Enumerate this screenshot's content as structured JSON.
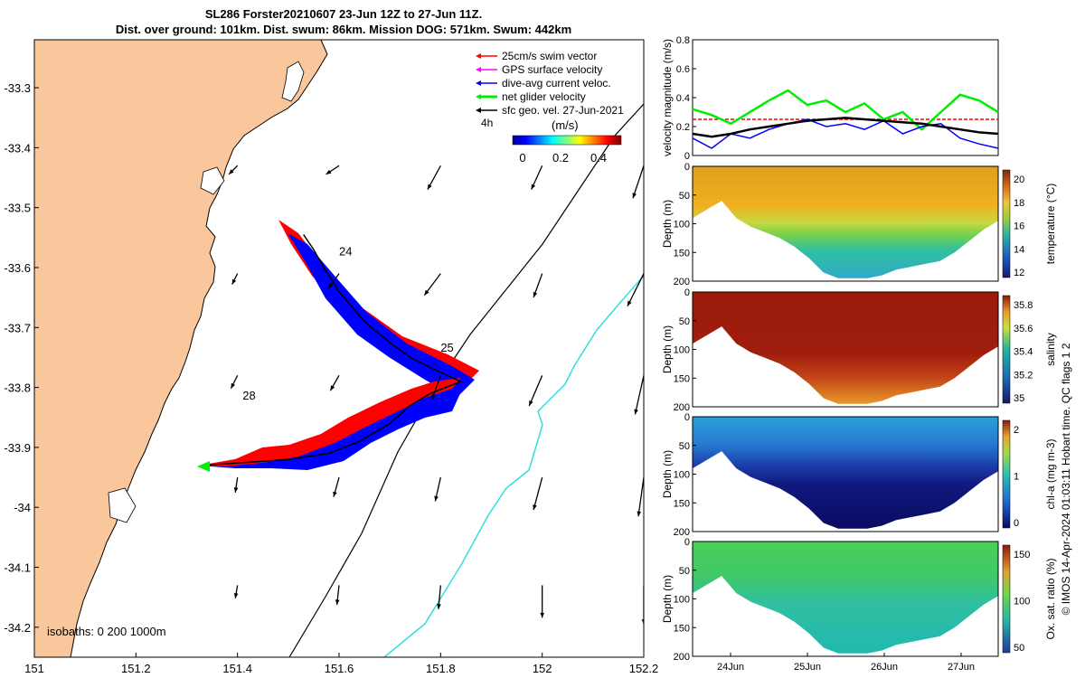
{
  "header": {
    "line1": "SL286 Forster20210607 23-Jun 12Z to 27-Jun 11Z.",
    "line2": "Dist. over ground: 101km. Dist. swum: 86km. Mission DOG: 571km. Swum: 442km"
  },
  "map": {
    "lon_ticks": [
      "151",
      "151.2",
      "151.4",
      "151.6",
      "151.8",
      "152",
      "152.2"
    ],
    "lat_ticks": [
      "-33.3",
      "-33.4",
      "-33.5",
      "-33.6",
      "-33.7",
      "-33.8",
      "-33.9",
      "-34",
      "-34.1",
      "-34.2"
    ],
    "xlim": [
      151,
      152.2
    ],
    "ylim": [
      -34.25,
      -33.22
    ],
    "land_color": "#f9c79b",
    "legend": [
      {
        "label": "25cm/s swim vector",
        "color": "#ff0000"
      },
      {
        "label": "GPS surface velocity",
        "color": "#ff00ff"
      },
      {
        "label": "dive-avg current veloc.",
        "color": "#0000ff"
      },
      {
        "label": "net glider velocity",
        "color": "#00ee00"
      },
      {
        "label": "sfc geo. vel. 27-Jun-2021",
        "color": "#000000"
      }
    ],
    "legend_extra": "4h",
    "colorbar": {
      "label": "(m/s)",
      "ticks": [
        "0",
        "0.2",
        "0.4"
      ]
    },
    "isobaths": "isobaths: 0   200  1000m",
    "day_labels": [
      {
        "text": "24",
        "lon": 151.6,
        "lat": -33.58
      },
      {
        "text": "25",
        "lon": 151.8,
        "lat": -33.74
      },
      {
        "text": "28",
        "lon": 151.41,
        "lat": -33.82
      }
    ],
    "track": [
      [
        151.33,
        -33.93
      ],
      [
        151.42,
        -33.925
      ],
      [
        151.5,
        -33.92
      ],
      [
        151.58,
        -33.91
      ],
      [
        151.64,
        -33.89
      ],
      [
        151.7,
        -33.86
      ],
      [
        151.74,
        -33.83
      ],
      [
        151.78,
        -33.81
      ],
      [
        151.84,
        -33.79
      ],
      [
        151.8,
        -33.775
      ],
      [
        151.74,
        -33.75
      ],
      [
        151.7,
        -33.725
      ],
      [
        151.65,
        -33.69
      ],
      [
        151.6,
        -33.64
      ],
      [
        151.57,
        -33.6
      ],
      [
        151.55,
        -33.57
      ],
      [
        151.53,
        -33.545
      ]
    ],
    "vectors": [
      {
        "lon": 151.4,
        "lat": -33.43,
        "u": -0.08,
        "v": -0.08
      },
      {
        "lon": 151.6,
        "lat": -33.43,
        "u": -0.12,
        "v": -0.08
      },
      {
        "lon": 151.8,
        "lat": -33.43,
        "u": -0.12,
        "v": -0.22
      },
      {
        "lon": 152.0,
        "lat": -33.43,
        "u": -0.1,
        "v": -0.22
      },
      {
        "lon": 152.2,
        "lat": -33.43,
        "u": -0.1,
        "v": -0.3
      },
      {
        "lon": 151.4,
        "lat": -33.61,
        "u": -0.05,
        "v": -0.1
      },
      {
        "lon": 151.6,
        "lat": -33.61,
        "u": -0.1,
        "v": -0.14
      },
      {
        "lon": 151.8,
        "lat": -33.61,
        "u": -0.15,
        "v": -0.2
      },
      {
        "lon": 152.0,
        "lat": -33.61,
        "u": -0.08,
        "v": -0.22
      },
      {
        "lon": 152.2,
        "lat": -33.61,
        "u": -0.15,
        "v": -0.3
      },
      {
        "lon": 151.4,
        "lat": -33.78,
        "u": -0.06,
        "v": -0.12
      },
      {
        "lon": 151.6,
        "lat": -33.78,
        "u": -0.08,
        "v": -0.14
      },
      {
        "lon": 151.8,
        "lat": -33.78,
        "u": -0.08,
        "v": -0.22
      },
      {
        "lon": 152.0,
        "lat": -33.78,
        "u": -0.12,
        "v": -0.28
      },
      {
        "lon": 152.2,
        "lat": -33.78,
        "u": -0.08,
        "v": -0.36
      },
      {
        "lon": 151.4,
        "lat": -33.95,
        "u": -0.02,
        "v": -0.14
      },
      {
        "lon": 151.6,
        "lat": -33.95,
        "u": -0.05,
        "v": -0.18
      },
      {
        "lon": 151.8,
        "lat": -33.95,
        "u": -0.05,
        "v": -0.22
      },
      {
        "lon": 152.0,
        "lat": -33.95,
        "u": -0.08,
        "v": -0.3
      },
      {
        "lon": 152.2,
        "lat": -33.95,
        "u": -0.05,
        "v": -0.36
      },
      {
        "lon": 151.4,
        "lat": -34.13,
        "u": -0.02,
        "v": -0.12
      },
      {
        "lon": 151.6,
        "lat": -34.13,
        "u": -0.02,
        "v": -0.18
      },
      {
        "lon": 151.8,
        "lat": -34.13,
        "u": -0.02,
        "v": -0.22
      },
      {
        "lon": 152.0,
        "lat": -34.13,
        "u": 0.0,
        "v": -0.3
      },
      {
        "lon": 152.2,
        "lat": -34.13,
        "u": 0.0,
        "v": -0.36
      }
    ]
  },
  "velocity_panel": {
    "ylabel": "velocity magnitude (m/s)",
    "yticks": [
      "0",
      "0.2",
      "0.4",
      "0.6",
      "0.8"
    ],
    "ylim": [
      0,
      0.8
    ],
    "swim_level": 0.25
  },
  "section_panels": [
    {
      "name": "temperature",
      "cbar_label": "temperature (°C)",
      "cbar_ticks": [
        "12",
        "14",
        "16",
        "18",
        "20"
      ],
      "yticks": [
        "0",
        "50",
        "100",
        "150",
        "200"
      ],
      "ylabel": "Depth (m)"
    },
    {
      "name": "salinity",
      "cbar_label": "salinity",
      "cbar_ticks": [
        "35",
        "35.2",
        "35.4",
        "35.6",
        "35.8"
      ],
      "yticks": [
        "0",
        "50",
        "100",
        "150",
        "200"
      ],
      "ylabel": "Depth (m)"
    },
    {
      "name": "chla",
      "cbar_label": "chl-a (mg m-3)",
      "cbar_ticks": [
        "0",
        "1",
        "2"
      ],
      "yticks": [
        "0",
        "50",
        "100",
        "150",
        "200"
      ],
      "ylabel": "Depth (m)"
    },
    {
      "name": "oxygen",
      "cbar_label": "Ox. sat. ratio (%)",
      "cbar_ticks": [
        "50",
        "100",
        "150"
      ],
      "yticks": [
        "0",
        "50",
        "100",
        "150",
        "200"
      ],
      "ylabel": "Depth (m)"
    }
  ],
  "time_ticks": [
    "24Jun",
    "25Jun",
    "26Jun",
    "27Jun"
  ],
  "side_note": "© IMOS 14-Apr-2024 01:03:11 Hobart time. QC flags 1  2",
  "chart_data": [
    {
      "type": "map",
      "title": "SL286 Forster20210607 23-Jun 12Z to 27-Jun 11Z.",
      "xlabel": "",
      "ylabel": "",
      "xlim": [
        151,
        152.2
      ],
      "ylim": [
        -34.25,
        -33.22
      ]
    },
    {
      "type": "line",
      "ylabel": "velocity magnitude (m/s)",
      "x": [
        0,
        0.25,
        0.5,
        0.75,
        1,
        1.25,
        1.5,
        1.75,
        2,
        2.25,
        2.5,
        2.75,
        3,
        3.25,
        3.5,
        3.75,
        4
      ],
      "series": [
        {
          "name": "swim",
          "color": "#ff0000",
          "values": [
            0.25,
            0.25,
            0.25,
            0.25,
            0.25,
            0.25,
            0.25,
            0.25,
            0.25,
            0.25,
            0.25,
            0.25,
            0.25,
            0.25,
            0.25,
            0.25,
            0.25
          ]
        },
        {
          "name": "net",
          "color": "#00ee00",
          "values": [
            0.32,
            0.28,
            0.22,
            0.3,
            0.38,
            0.45,
            0.35,
            0.38,
            0.3,
            0.36,
            0.25,
            0.3,
            0.18,
            0.3,
            0.42,
            0.38,
            0.3
          ]
        },
        {
          "name": "current",
          "color": "#0000ff",
          "values": [
            0.12,
            0.05,
            0.15,
            0.12,
            0.18,
            0.22,
            0.25,
            0.2,
            0.22,
            0.18,
            0.24,
            0.15,
            0.2,
            0.22,
            0.12,
            0.08,
            0.05
          ]
        },
        {
          "name": "geo",
          "color": "#000000",
          "values": [
            0.15,
            0.13,
            0.15,
            0.18,
            0.2,
            0.22,
            0.24,
            0.25,
            0.26,
            0.25,
            0.24,
            0.23,
            0.22,
            0.2,
            0.18,
            0.16,
            0.15
          ]
        }
      ],
      "ylim": [
        0,
        0.8
      ]
    },
    {
      "type": "heatmap",
      "ylabel": "Depth (m)",
      "x": [
        "24Jun",
        "25Jun",
        "26Jun",
        "27Jun"
      ],
      "ylim": [
        200,
        0
      ],
      "max_depth_profile": [
        90,
        75,
        60,
        90,
        105,
        115,
        125,
        140,
        160,
        185,
        195,
        195,
        195,
        190,
        180,
        175,
        170,
        165,
        150,
        130,
        110,
        95
      ]
    }
  ]
}
